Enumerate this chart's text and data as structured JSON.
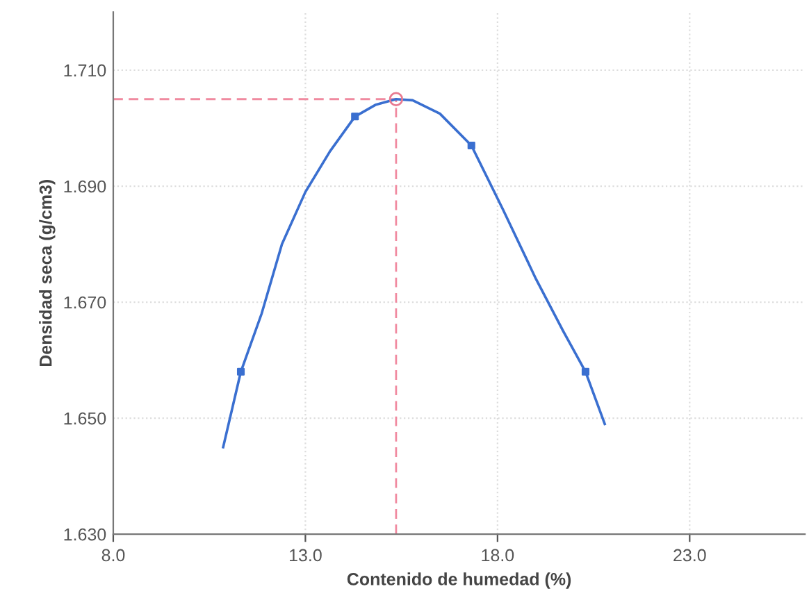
{
  "chart_data": {
    "type": "line",
    "xlabel": "Contenido de humedad (%)",
    "ylabel": "Densidad seca (g/cm3)",
    "xlim": [
      8,
      26
    ],
    "ylim": [
      1.63,
      1.72
    ],
    "xticks": [
      {
        "value": 8,
        "label": "8.0"
      },
      {
        "value": 13,
        "label": "13.0"
      },
      {
        "value": 18,
        "label": "18.0"
      },
      {
        "value": 23,
        "label": "23.0"
      }
    ],
    "yticks": [
      {
        "value": 1.63,
        "label": "1.630"
      },
      {
        "value": 1.65,
        "label": "1.650"
      },
      {
        "value": 1.67,
        "label": "1.670"
      },
      {
        "value": 1.69,
        "label": "1.690"
      },
      {
        "value": 1.71,
        "label": "1.710"
      }
    ],
    "grid": true,
    "series": [
      {
        "color": "#3a6fd0",
        "marker": "none",
        "line_style": "solid",
        "x": [
          10.86,
          11.32,
          11.86,
          12.39,
          13.0,
          13.64,
          14.29,
          14.82,
          15.36,
          15.79,
          16.5,
          17.32,
          18.14,
          19.0,
          19.71,
          20.29,
          20.79
        ],
        "values": [
          1.645,
          1.658,
          1.668,
          1.68,
          1.689,
          1.696,
          1.702,
          1.704,
          1.705,
          1.7048,
          1.7025,
          1.697,
          1.686,
          1.674,
          1.665,
          1.658,
          1.649
        ]
      },
      {
        "type": "scatter",
        "color": "#3a6fd0",
        "marker": "square",
        "x": [
          11.32,
          14.29,
          17.32,
          20.29
        ],
        "values": [
          1.658,
          1.702,
          1.697,
          1.658
        ]
      },
      {
        "type": "scatter",
        "color": "#e87a90",
        "marker": "circle",
        "x": [
          15.36
        ],
        "values": [
          1.705
        ]
      }
    ],
    "ref_lines": [
      {
        "axis": "x",
        "value": 15.36,
        "color": "#f08aa0",
        "line_style": "dashed"
      },
      {
        "axis": "y",
        "value": 1.705,
        "color": "#f08aa0",
        "line_style": "dashed"
      }
    ]
  }
}
